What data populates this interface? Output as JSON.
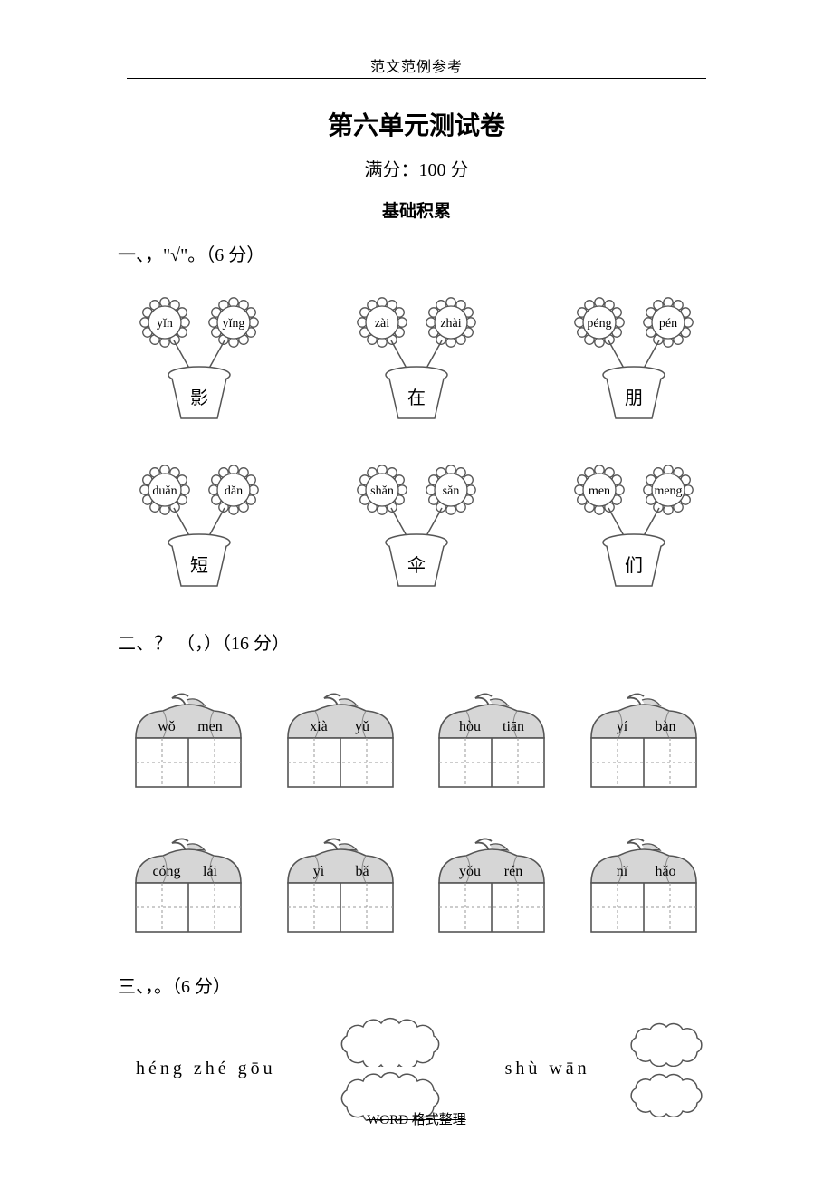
{
  "header": "范文范例参考",
  "title": "第六单元测试卷",
  "subtitle": "满分：100 分",
  "section_label": "基础积累",
  "q1": {
    "heading": "一、，\"√\"。（6 分）",
    "items": [
      [
        {
          "left": "yǐn",
          "right": "yǐng",
          "char": "影"
        },
        {
          "left": "zài",
          "right": "zhài",
          "char": "在"
        },
        {
          "left": "péng",
          "right": "pén",
          "char": "朋"
        }
      ],
      [
        {
          "left": "duǎn",
          "right": "dǎn",
          "char": "短"
        },
        {
          "left": "shǎn",
          "right": "sǎn",
          "char": "伞"
        },
        {
          "left": "men",
          "right": "meng",
          "char": "们"
        }
      ]
    ]
  },
  "q2": {
    "heading": "二、？ （，）（16 分）",
    "items": [
      [
        {
          "p1": "wǒ",
          "p2": "men"
        },
        {
          "p1": "xià",
          "p2": "yǔ"
        },
        {
          "p1": "hòu",
          "p2": "tiān"
        },
        {
          "p1": "yí",
          "p2": "bàn"
        }
      ],
      [
        {
          "p1": "cóng",
          "p2": "lái"
        },
        {
          "p1": "yì",
          "p2": "bǎ"
        },
        {
          "p1": "yǒu",
          "p2": "rén"
        },
        {
          "p1": "nǐ",
          "p2": "hǎo"
        }
      ]
    ]
  },
  "q3": {
    "heading": "三、，。（6 分）",
    "left_label": "héng zhé gōu",
    "right_label": "shù wān"
  },
  "footer_strike": "WORD 格式整理",
  "style": {
    "stroke": "#555555",
    "stroke_light": "#888888",
    "fill_gray": "#d6d6d6",
    "dash": "#999999"
  }
}
